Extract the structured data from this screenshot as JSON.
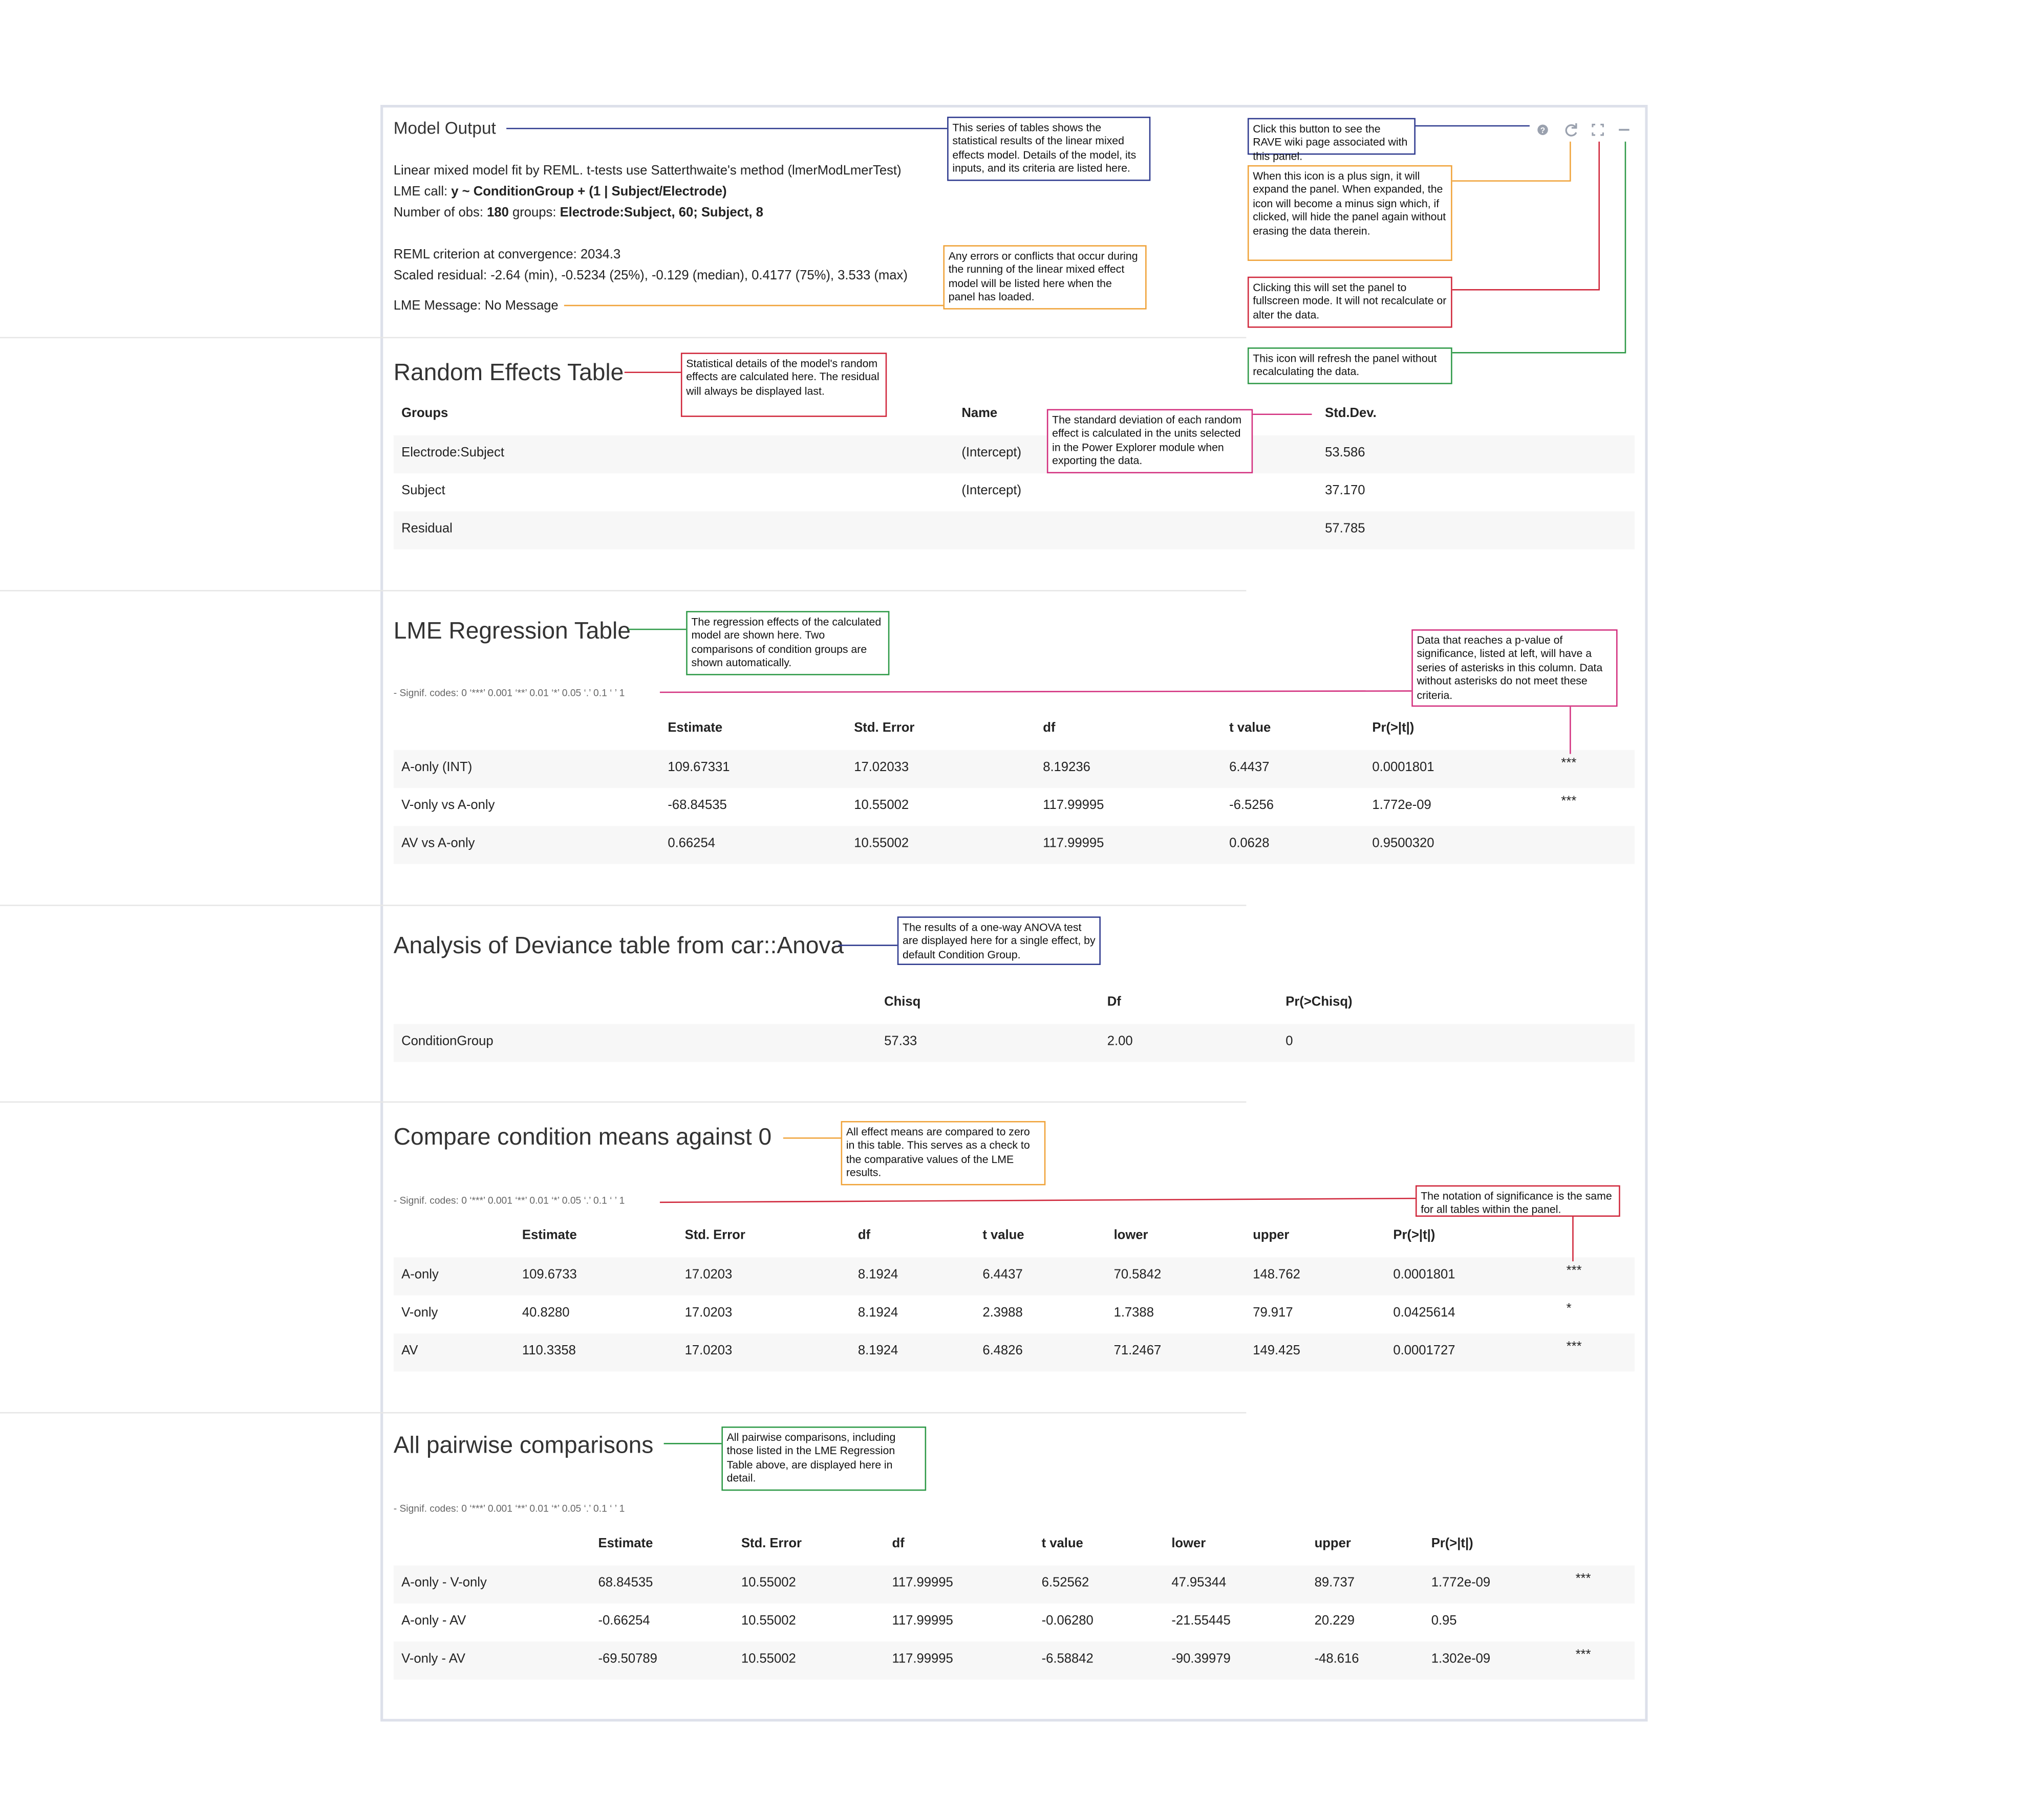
{
  "header": {
    "title": "Model Output"
  },
  "summary": {
    "fit": "Linear mixed model fit by REML. t-tests use Satterthwaite's method (lmerModLmerTest)",
    "lme_call": {
      "label": "LME call:",
      "value": "y ~ ConditionGroup + (1 | Subject/Electrode)"
    },
    "obs": {
      "label": "Number of obs:",
      "n": "180",
      "groups_label": "groups:",
      "groups": "Electrode:Subject, 60; Subject, 8"
    },
    "reml": "REML criterion at convergence: 2034.3",
    "residual": "Scaled residual: -2.64 (min), -0.5234 (25%), -0.129 (median), 0.4177 (75%), 3.533 (max)",
    "message": "LME Message: No Message"
  },
  "sections": [
    {
      "title": "Random Effects Table",
      "table": {
        "columns": [
          "Groups",
          "Name",
          "Std.Dev."
        ],
        "rows": [
          [
            "Electrode:Subject",
            "(Intercept)",
            "53.586"
          ],
          [
            "Subject",
            "(Intercept)",
            "37.170"
          ],
          [
            "Residual",
            null,
            "57.785"
          ]
        ]
      }
    },
    {
      "title": "LME Regression Table",
      "signif": "- Signif. codes: 0 ‘***’ 0.001 ‘**’ 0.01 ‘*’ 0.05 ‘.’ 0.1 ‘ ’ 1",
      "table": {
        "columns": [
          null,
          "Estimate",
          "Std. Error",
          "df",
          "t value",
          "Pr(>|t|)",
          null
        ],
        "rows": [
          [
            "A-only (INT)",
            "109.67331",
            "17.02033",
            "8.19236",
            "6.4437",
            "0.0001801",
            "***"
          ],
          [
            "V-only vs A-only",
            "-68.84535",
            "10.55002",
            "117.99995",
            "-6.5256",
            "1.772e-09",
            "***"
          ],
          [
            "AV vs A-only",
            "0.66254",
            "10.55002",
            "117.99995",
            "0.0628",
            "0.9500320",
            null
          ]
        ]
      }
    },
    {
      "title": "Analysis of Deviance table from car::Anova",
      "table": {
        "columns": [
          null,
          "Chisq",
          "Df",
          "Pr(>Chisq)"
        ],
        "rows": [
          [
            "ConditionGroup",
            "57.33",
            "2.00",
            "0"
          ]
        ]
      }
    },
    {
      "title": "Compare condition means against 0",
      "signif": "- Signif. codes: 0 ‘***’ 0.001 ‘**’ 0.01 ‘*’ 0.05 ‘.’ 0.1 ‘ ’ 1",
      "table": {
        "columns": [
          null,
          "Estimate",
          "Std. Error",
          "df",
          "t value",
          "lower",
          "upper",
          "Pr(>|t|)",
          null
        ],
        "rows": [
          [
            "A-only",
            "109.6733",
            "17.0203",
            "8.1924",
            "6.4437",
            "70.5842",
            "148.762",
            "0.0001801",
            "***"
          ],
          [
            "V-only",
            "40.8280",
            "17.0203",
            "8.1924",
            "2.3988",
            "1.7388",
            "79.917",
            "0.0425614",
            "*"
          ],
          [
            "AV",
            "110.3358",
            "17.0203",
            "8.1924",
            "6.4826",
            "71.2467",
            "149.425",
            "0.0001727",
            "***"
          ]
        ]
      }
    },
    {
      "title": "All pairwise comparisons",
      "signif": "- Signif. codes: 0 ‘***’ 0.001 ‘**’ 0.01 ‘*’ 0.05 ‘.’ 0.1 ‘ ’ 1",
      "table": {
        "columns": [
          null,
          "Estimate",
          "Std. Error",
          "df",
          "t value",
          "lower",
          "upper",
          "Pr(>|t|)",
          null
        ],
        "rows": [
          [
            "A-only - V-only",
            "68.84535",
            "10.55002",
            "117.99995",
            "6.52562",
            "47.95344",
            "89.737",
            "1.772e-09",
            "***"
          ],
          [
            "A-only - AV",
            "-0.66254",
            "10.55002",
            "117.99995",
            "-0.06280",
            "-21.55445",
            "20.229",
            "0.95",
            null
          ],
          [
            "V-only - AV",
            "-69.50789",
            "10.55002",
            "117.99995",
            "-6.58842",
            "-90.39979",
            "-48.616",
            "1.302e-09",
            "***"
          ]
        ]
      }
    }
  ],
  "annotations": [
    {
      "text": "This series of tables shows the statistical results of the linear mixed effects model. Details of the model, its inputs, and its criteria are listed here.",
      "color": "#2f3b8f"
    },
    {
      "text": "Click this button to see the RAVE wiki page associated with this panel.",
      "color": "#2f3b8f"
    },
    {
      "text": "When this icon is a plus sign, it will expand the panel. When expanded, the icon will become a minus sign which, if clicked, will hide the panel again without erasing the data therein.",
      "color": "#f0a33a"
    },
    {
      "text": "Clicking this will set the panel to fullscreen mode. It will not recalculate or alter the data.",
      "color": "#d0283c"
    },
    {
      "text": "This icon will refresh the panel without recalculating the data.",
      "color": "#2f9a48"
    },
    {
      "text": "Any errors or conflicts that occur during the running of the linear mixed effect model will be listed here when the panel has loaded.",
      "color": "#f0a33a"
    },
    {
      "text": "Statistical details of the model's random effects are calculated here. The residual will always be displayed last.",
      "color": "#d0283c"
    },
    {
      "text": "The standard deviation of each random effect is calculated in the units selected in the Power Explorer module when exporting the data.",
      "color": "#d3317f"
    },
    {
      "text": "The regression effects of the calculated model are shown here. Two comparisons of condition groups are shown automatically.",
      "color": "#2f9a48"
    },
    {
      "text": "Data that reaches a p-value of significance, listed at left, will have a series of asterisks in this column. Data without asterisks do not meet these criteria.",
      "color": "#d3317f"
    },
    {
      "text": "The results of a one-way ANOVA test are displayed here for a single effect, by default Condition Group.",
      "color": "#2f3b8f"
    },
    {
      "text": "All effect means are compared to zero in this table. This serves as a check to the comparative values of the LME results.",
      "color": "#f0a33a"
    },
    {
      "text": "The notation of significance is the same for all tables within the panel.",
      "color": "#d0283c"
    },
    {
      "text": "All pairwise comparisons, including those listed in the LME Regression Table above, are displayed here in detail.",
      "color": "#2f9a48"
    }
  ]
}
